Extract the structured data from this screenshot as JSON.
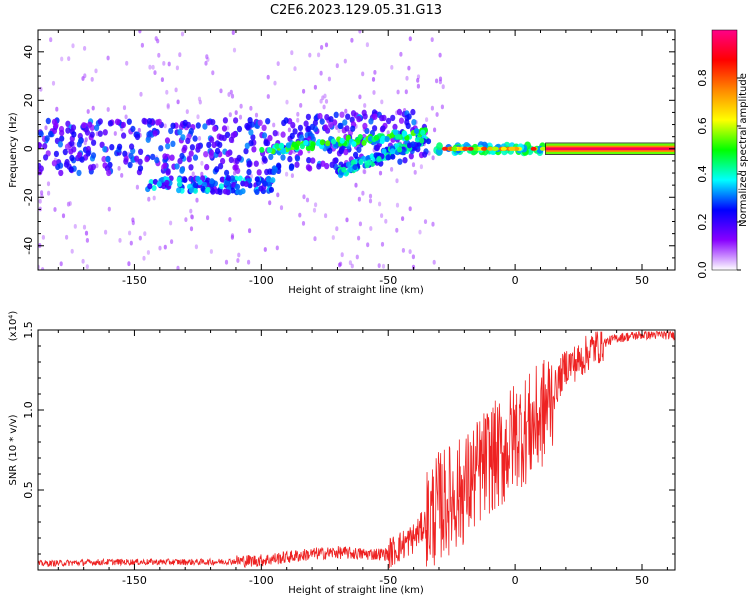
{
  "figure": {
    "title": "C2E6.2023.129.05.31.G13"
  },
  "chart_data": [
    {
      "type": "heatmap",
      "description_free": true,
      "xlabel": "Height of straight line (km)",
      "ylabel": "Frequency (Hz)",
      "xlim": [
        -188,
        63
      ],
      "ylim": [
        -50,
        49
      ],
      "x_ticks": [
        -150,
        -100,
        -50,
        0,
        50
      ],
      "y_ticks": [
        -40,
        -20,
        0,
        20,
        40
      ],
      "colorbar": {
        "label": "Normalized spectral amplitude",
        "range": [
          0.0,
          1.0
        ],
        "ticks": [
          0.0,
          0.2,
          0.4,
          0.6,
          0.8
        ],
        "tick_labels": [
          "0.0",
          "0.2",
          "0.4",
          "0.6",
          "0.8"
        ],
        "colormap": [
          "#ffffff",
          "#8800ff",
          "#0000ff",
          "#00ffff",
          "#00ff00",
          "#ffff00",
          "#ff8800",
          "#ff0000",
          "#ff0088"
        ]
      },
      "features": [
        {
          "x": [
            -188,
            -35
          ],
          "y_center": 1,
          "y_spread": 6,
          "amplitude": 0.3
        },
        {
          "x": [
            -100,
            -60
          ],
          "y": [
            -3,
            8
          ],
          "amplitude": 0.4
        },
        {
          "x": [
            -145,
            -95
          ],
          "y_center": -15,
          "amplitude": 0.35
        },
        {
          "x": [
            -70,
            -35
          ],
          "y": [
            -10,
            5
          ],
          "amplitude": 0.3
        },
        {
          "x": [
            -32,
            12
          ],
          "y_center": 0,
          "amplitude": 0.7
        },
        {
          "x": [
            12,
            63
          ],
          "y_center": 0,
          "amplitude": 0.95
        }
      ]
    },
    {
      "type": "line",
      "xlabel": "Height of straight line (km)",
      "ylabel": "SNR (10 * v/v)",
      "y_multiplier": "(x10⁴)",
      "xlim": [
        -188,
        63
      ],
      "ylim": [
        0,
        1.5
      ],
      "x_ticks": [
        -150,
        -100,
        -50,
        0,
        50
      ],
      "y_ticks": [
        0.5,
        1.0,
        1.5
      ],
      "y_tick_labels": [
        "0.5",
        "1.0",
        "1.5"
      ],
      "color": "#ee2222",
      "series": [
        {
          "x": [
            -188,
            -160,
            -140,
            -120,
            -100,
            -90,
            -80,
            -70,
            -60,
            -50,
            -45,
            -40,
            -35,
            -30,
            -25,
            -20,
            -15,
            -10,
            -5,
            0,
            5,
            10,
            15,
            20,
            25,
            30,
            35,
            40,
            50,
            63
          ],
          "values": [
            0.04,
            0.05,
            0.05,
            0.05,
            0.06,
            0.08,
            0.1,
            0.11,
            0.1,
            0.1,
            0.15,
            0.2,
            0.3,
            0.4,
            0.45,
            0.5,
            0.6,
            0.7,
            0.72,
            0.85,
            0.88,
            0.95,
            1.1,
            1.28,
            1.3,
            1.38,
            1.42,
            1.45,
            1.47,
            1.47
          ]
        }
      ]
    }
  ]
}
